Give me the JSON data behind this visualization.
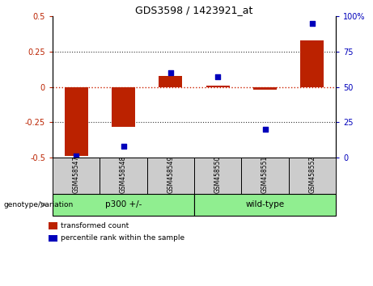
{
  "title": "GDS3598 / 1423921_at",
  "samples": [
    "GSM458547",
    "GSM458548",
    "GSM458549",
    "GSM458550",
    "GSM458551",
    "GSM458552"
  ],
  "bar_values": [
    -0.49,
    -0.28,
    0.08,
    0.01,
    -0.02,
    0.33
  ],
  "dot_values_pct": [
    1,
    8,
    60,
    57,
    20,
    95
  ],
  "ylim_left": [
    -0.5,
    0.5
  ],
  "ylim_right": [
    0,
    100
  ],
  "yticks_left": [
    -0.5,
    -0.25,
    0,
    0.25,
    0.5
  ],
  "yticks_right": [
    0,
    25,
    50,
    75,
    100
  ],
  "ytick_labels_left": [
    "-0.5",
    "-0.25",
    "0",
    "0.25",
    "0.5"
  ],
  "ytick_labels_right": [
    "0",
    "25",
    "50",
    "75",
    "100%"
  ],
  "bar_color": "#bb2200",
  "dot_color": "#0000bb",
  "zero_line_color": "#cc2200",
  "group1_label": "p300 +/-",
  "group2_label": "wild-type",
  "group1_indices": [
    0,
    1,
    2
  ],
  "group2_indices": [
    3,
    4,
    5
  ],
  "group_color": "#90ee90",
  "sample_bg_color": "#cccccc",
  "genotype_label": "genotype/variation",
  "legend_bar_label": "transformed count",
  "legend_dot_label": "percentile rank within the sample"
}
